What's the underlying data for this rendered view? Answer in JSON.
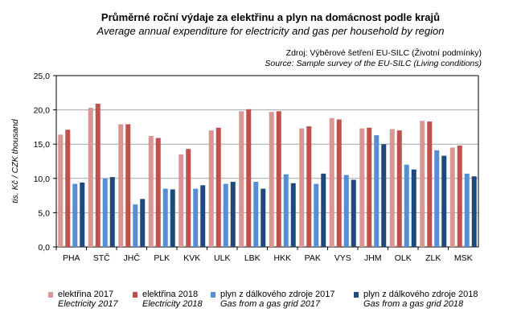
{
  "chart_data": {
    "type": "bar",
    "title": "Průměrné roční výdaje za elektřinu a plyn na domácnost podle krajů",
    "subtitle": "Average annual expenditure for electricity and gas per household by region",
    "source_cz": "Zdroj: Výběrové šetření EU-SILC (Životní podmínky)",
    "source_en": "Source: Sample survey of the EU-SILC (Living conditions)",
    "ylabel": "tis. Kč / CZK thousand",
    "ylim": [
      0,
      25
    ],
    "yticks": [
      "0,0",
      "5,0",
      "10,0",
      "15,0",
      "20,0",
      "25,0"
    ],
    "categories": [
      "PHA",
      "STČ",
      "JHČ",
      "PLK",
      "KVK",
      "ULK",
      "LBK",
      "HKK",
      "PAK",
      "VYS",
      "JHM",
      "OLK",
      "ZLK",
      "MSK"
    ],
    "series": [
      {
        "name": "elektřina 2017",
        "name_en": "Electricity 2017",
        "color": "#d99694",
        "values": [
          16.4,
          20.3,
          17.9,
          16.2,
          13.5,
          17.0,
          19.8,
          19.7,
          17.3,
          18.8,
          17.3,
          17.2,
          18.4,
          14.5
        ]
      },
      {
        "name": "elektřina 2018",
        "name_en": "Electricity 2018",
        "color": "#c0504d",
        "values": [
          17.1,
          20.9,
          17.9,
          15.9,
          14.3,
          17.4,
          20.1,
          19.8,
          17.6,
          18.6,
          17.4,
          17.0,
          18.3,
          14.8
        ]
      },
      {
        "name": "plyn z dálkového zdroje 2017",
        "name_en": "Gas from a gas grid 2017",
        "color": "#558ed5",
        "values": [
          9.2,
          10.0,
          6.2,
          8.5,
          8.5,
          9.2,
          9.5,
          10.6,
          9.2,
          10.5,
          16.3,
          12.0,
          14.1,
          10.7
        ]
      },
      {
        "name": "plyn z dálkového zdroje 2018",
        "name_en": "Gas from a gas grid 2018",
        "color": "#1f497d",
        "values": [
          9.4,
          10.2,
          7.0,
          8.4,
          9.0,
          9.5,
          8.5,
          9.3,
          10.7,
          9.8,
          15.0,
          11.3,
          13.3,
          10.3
        ]
      }
    ],
    "grid": true,
    "legend": "bottom"
  }
}
